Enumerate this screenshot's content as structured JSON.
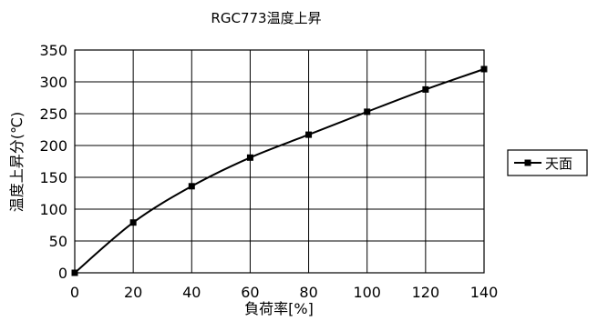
{
  "chart_data": {
    "type": "line",
    "title": "RGC773温度上昇",
    "xlabel": "負荷率[%]",
    "ylabel": "温度上昇分(℃)",
    "xlim": [
      0,
      140
    ],
    "ylim": [
      0,
      350
    ],
    "x_ticks": [
      0,
      20,
      40,
      60,
      80,
      100,
      120,
      140
    ],
    "y_ticks": [
      0,
      50,
      100,
      150,
      200,
      250,
      300,
      350
    ],
    "grid": true,
    "legend_position": "right",
    "x": [
      0,
      20,
      40,
      60,
      80,
      100,
      120,
      140
    ],
    "series": [
      {
        "name": "天面",
        "values": [
          0,
          79,
          136,
          181,
          217,
          253,
          288,
          320
        ],
        "color": "#000000",
        "marker": "square"
      }
    ]
  }
}
